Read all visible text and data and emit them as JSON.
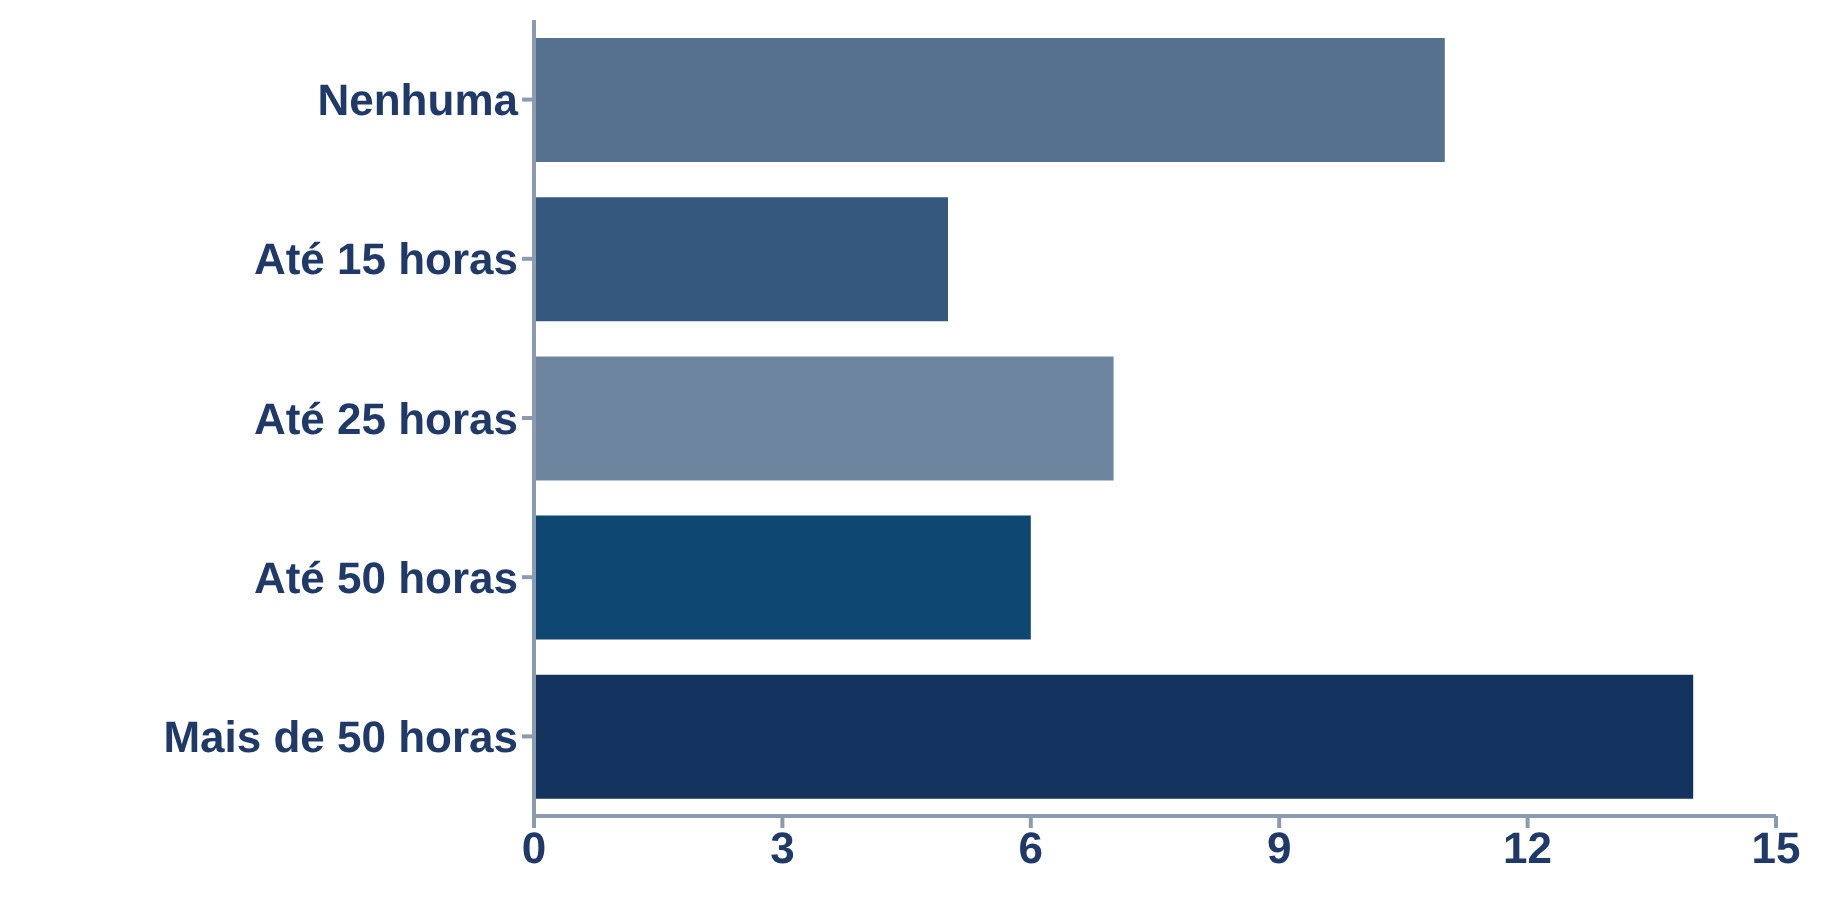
{
  "chart_data": {
    "type": "bar",
    "orientation": "horizontal",
    "categories": [
      "Nenhuma",
      "Até 15 horas",
      "Até 25 horas",
      "Até 50 horas",
      "Mais de 50 horas"
    ],
    "values": [
      11,
      5,
      7,
      6,
      14
    ],
    "colors": [
      "#56708f",
      "#35587f",
      "#6e85a0",
      "#0e4771",
      "#15335f"
    ],
    "xlim": [
      0,
      15
    ],
    "xticks": [
      0,
      3,
      6,
      9,
      12,
      15
    ],
    "grid": false,
    "legend": false
  }
}
